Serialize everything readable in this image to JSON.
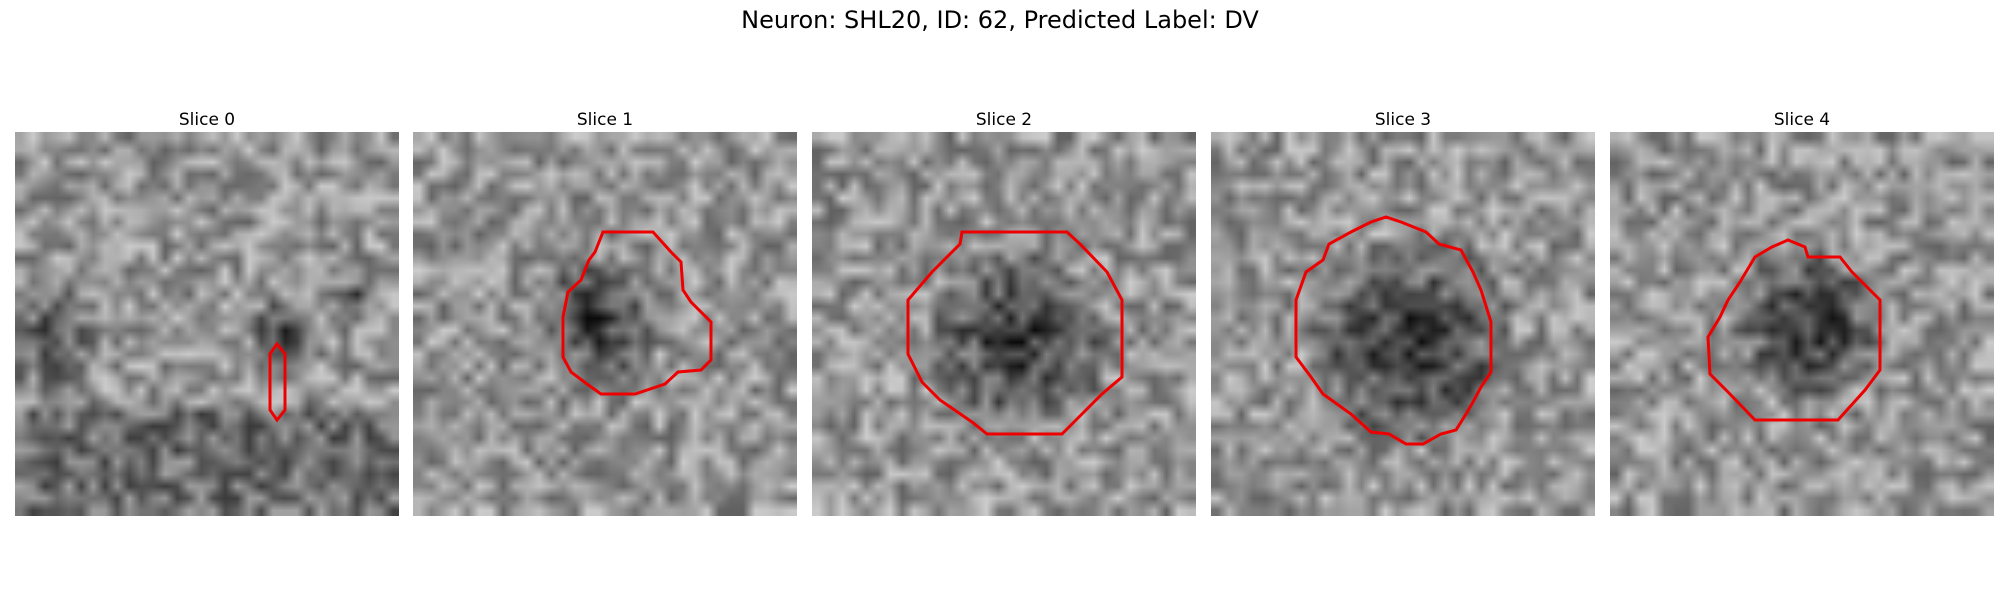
{
  "figure": {
    "title": "Neuron: SHL20, ID: 62, Predicted Label: DV",
    "contour_color": "#ff0000",
    "colormap": "gray",
    "panels": [
      {
        "title": "Slice 0"
      },
      {
        "title": "Slice 1"
      },
      {
        "title": "Slice 2"
      },
      {
        "title": "Slice 3"
      },
      {
        "title": "Slice 4"
      }
    ]
  }
}
